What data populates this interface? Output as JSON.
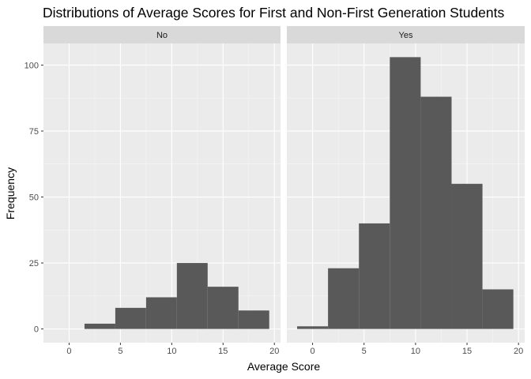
{
  "chart_data": {
    "type": "bar",
    "title": "Distributions of Average Scores for First and Non-First Generation Students",
    "xlabel": "Average Score",
    "ylabel": "Frequency",
    "xlim": [
      -2.5,
      20.6
    ],
    "ylim": [
      -5.2,
      108.2
    ],
    "xticks": [
      0,
      5,
      10,
      15,
      20
    ],
    "yticks": [
      0,
      25,
      50,
      75,
      100
    ],
    "grid": true,
    "panels": [
      {
        "name": "No",
        "bins": [
          {
            "x0": -1.5,
            "x1": 1.5,
            "count": 0
          },
          {
            "x0": 1.5,
            "x1": 4.5,
            "count": 2
          },
          {
            "x0": 4.5,
            "x1": 7.5,
            "count": 8
          },
          {
            "x0": 7.5,
            "x1": 10.5,
            "count": 12
          },
          {
            "x0": 10.5,
            "x1": 13.5,
            "count": 25
          },
          {
            "x0": 13.5,
            "x1": 16.5,
            "count": 16
          },
          {
            "x0": 16.5,
            "x1": 19.5,
            "count": 7
          }
        ]
      },
      {
        "name": "Yes",
        "bins": [
          {
            "x0": -1.5,
            "x1": 1.5,
            "count": 1
          },
          {
            "x0": 1.5,
            "x1": 4.5,
            "count": 23
          },
          {
            "x0": 4.5,
            "x1": 7.5,
            "count": 40
          },
          {
            "x0": 7.5,
            "x1": 10.5,
            "count": 103
          },
          {
            "x0": 10.5,
            "x1": 13.5,
            "count": 88
          },
          {
            "x0": 13.5,
            "x1": 16.5,
            "count": 55
          },
          {
            "x0": 16.5,
            "x1": 19.5,
            "count": 15
          }
        ]
      }
    ],
    "colors": {
      "bar": "#595959",
      "panel_background": "#ebebeb",
      "grid_major": "#ffffff",
      "strip_background": "#d9d9d9"
    }
  }
}
